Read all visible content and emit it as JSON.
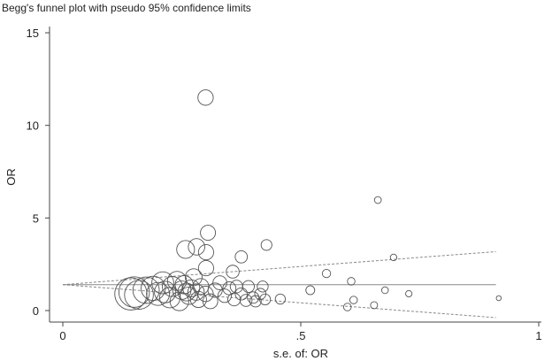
{
  "chart_data": {
    "type": "scatter",
    "title": "Begg's funnel plot with pseudo 95% confidence limits",
    "xlabel": "s.e. of: OR",
    "ylabel": "OR",
    "xlim": [
      0,
      1
    ],
    "ylim": [
      -0.6,
      15.5
    ],
    "xticks": [
      {
        "v": 0,
        "label": "0"
      },
      {
        "v": 0.5,
        "label": ".5"
      },
      {
        "v": 1,
        "label": "1"
      }
    ],
    "yticks": [
      {
        "v": 0,
        "label": "0"
      },
      {
        "v": 5,
        "label": "5"
      },
      {
        "v": 10,
        "label": "10"
      },
      {
        "v": 15,
        "label": "15"
      }
    ],
    "grid": false,
    "pooled_estimate": 1.4,
    "limit_lines_se_max": 0.91,
    "marker": "hollow circle sized by weight",
    "colors": {
      "marker": "#555555",
      "line": "#888888",
      "axis": "#444444"
    },
    "points": [
      [
        0.143,
        0.9
      ],
      [
        0.15,
        1.0
      ],
      [
        0.16,
        0.85
      ],
      [
        0.175,
        1.1
      ],
      [
        0.19,
        1.2
      ],
      [
        0.2,
        0.9
      ],
      [
        0.21,
        1.5
      ],
      [
        0.215,
        1.0
      ],
      [
        0.225,
        0.7
      ],
      [
        0.23,
        1.3
      ],
      [
        0.24,
        1.6
      ],
      [
        0.245,
        0.5
      ],
      [
        0.25,
        1.1
      ],
      [
        0.255,
        1.4
      ],
      [
        0.26,
        1.0
      ],
      [
        0.265,
        0.8
      ],
      [
        0.27,
        1.2
      ],
      [
        0.275,
        1.8
      ],
      [
        0.28,
        1.0
      ],
      [
        0.285,
        0.6
      ],
      [
        0.29,
        1.3
      ],
      [
        0.3,
        0.9
      ],
      [
        0.31,
        0.5
      ],
      [
        0.32,
        1.1
      ],
      [
        0.33,
        1.5
      ],
      [
        0.34,
        0.8
      ],
      [
        0.35,
        1.2
      ],
      [
        0.36,
        0.6
      ],
      [
        0.365,
        1.3
      ],
      [
        0.375,
        0.9
      ],
      [
        0.385,
        0.55
      ],
      [
        0.39,
        1.3
      ],
      [
        0.4,
        0.7
      ],
      [
        0.405,
        0.5
      ],
      [
        0.415,
        0.9
      ],
      [
        0.42,
        1.3
      ],
      [
        0.425,
        0.6
      ],
      [
        0.457,
        0.62
      ],
      [
        0.3,
        11.5
      ],
      [
        0.305,
        4.2
      ],
      [
        0.258,
        3.3
      ],
      [
        0.281,
        3.44
      ],
      [
        0.301,
        3.15
      ],
      [
        0.301,
        2.29
      ],
      [
        0.375,
        2.9
      ],
      [
        0.428,
        3.54
      ],
      [
        0.357,
        2.1
      ],
      [
        0.52,
        1.1
      ],
      [
        0.554,
        2.0
      ],
      [
        0.598,
        0.19
      ],
      [
        0.606,
        1.58
      ],
      [
        0.611,
        0.57
      ],
      [
        0.654,
        0.29
      ],
      [
        0.662,
        5.97
      ],
      [
        0.677,
        1.1
      ],
      [
        0.695,
        2.87
      ],
      [
        0.727,
        0.91
      ],
      [
        0.916,
        0.67
      ]
    ]
  }
}
